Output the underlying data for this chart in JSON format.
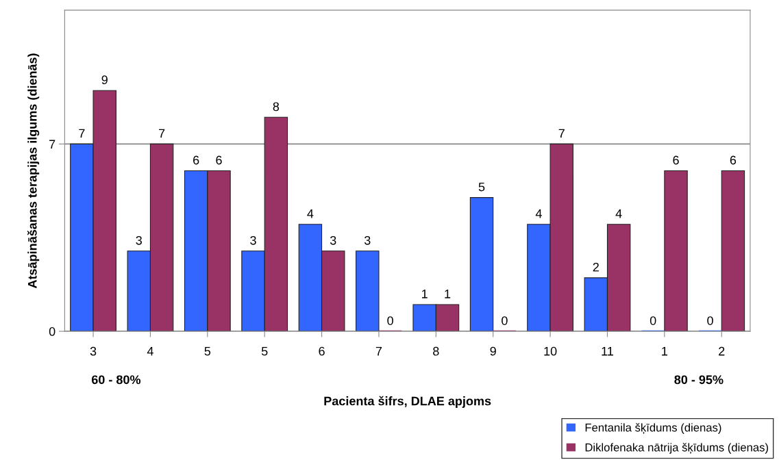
{
  "chart_data": {
    "type": "bar",
    "categories": [
      "3",
      "4",
      "5",
      "5",
      "6",
      "7",
      "8",
      "9",
      "10",
      "11",
      "1",
      "2"
    ],
    "series": [
      {
        "name": "Fentanila šķīdums (dienas)",
        "color": "#3366ff",
        "values": [
          7,
          3,
          6,
          3,
          4,
          3,
          1,
          5,
          4,
          2,
          0,
          0
        ]
      },
      {
        "name": "Diklofenaka nātrija šķīdums (dienas)",
        "color": "#993366",
        "values": [
          9,
          7,
          6,
          8,
          3,
          0,
          1,
          0,
          7,
          4,
          6,
          6
        ]
      }
    ],
    "xlabel": "Pacienta šifrs, DLAE apjoms",
    "ylabel": "Atsāpināšanas terapijas ilgums (dienās)",
    "annotations": [
      "60 - 80%",
      "80 - 95%"
    ],
    "ylim": [
      0,
      12
    ],
    "yticks": [
      0,
      7
    ],
    "grid": "y",
    "legend": "bottom right",
    "data_labels": true
  }
}
